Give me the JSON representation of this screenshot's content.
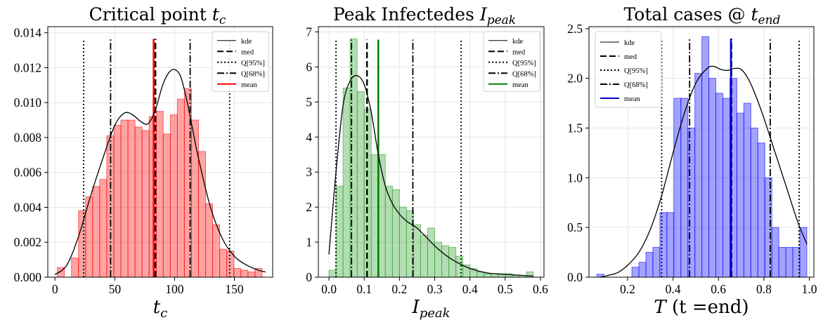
{
  "chart_data": [
    {
      "type": "bar",
      "title_text": "Critical point",
      "title_var": "t",
      "title_sub": "c",
      "xlabel_var": "t",
      "xlabel_sub": "c",
      "xlabel_tail": "",
      "bar_color": "#ff0000",
      "mean_color": "#ff0000",
      "xlim": [
        -6,
        182
      ],
      "ylim": [
        0,
        0.01435
      ],
      "xticks": [
        0,
        50,
        100,
        150
      ],
      "xtick_labels": [
        "0",
        "50",
        "100",
        "150"
      ],
      "yticks": [
        0,
        0.002,
        0.004,
        0.006,
        0.008,
        0.01,
        0.012,
        0.014
      ],
      "ytick_labels": [
        "0.000",
        "0.002",
        "0.004",
        "0.006",
        "0.008",
        "0.010",
        "0.012",
        "0.014"
      ],
      "bin_start": 2,
      "bin_width": 5.9,
      "values": [
        0.00055,
        0,
        0.0011,
        0.0038,
        0.0046,
        0.0052,
        0.0056,
        0.0081,
        0.0087,
        0.009,
        0.009,
        0.0086,
        0.0084,
        0.0092,
        0.0095,
        0.0082,
        0.0093,
        0.0102,
        0.0108,
        0.009,
        0.0072,
        0.0042,
        0.003,
        0.0016,
        0.0015,
        0.0005,
        0.0004,
        0.0003,
        0.0005
      ],
      "kde_x": [
        0,
        10,
        20,
        30,
        40,
        50,
        58,
        65,
        72,
        78,
        84,
        90,
        95,
        100,
        105,
        110,
        115,
        120,
        130,
        140,
        150,
        160,
        170,
        176
      ],
      "kde_y": [
        0.00015,
        0.0007,
        0.0024,
        0.0047,
        0.0068,
        0.0087,
        0.0094,
        0.0093,
        0.0089,
        0.0088,
        0.0096,
        0.011,
        0.0117,
        0.0119,
        0.0115,
        0.0102,
        0.0085,
        0.0068,
        0.004,
        0.0022,
        0.0012,
        0.0007,
        0.0004,
        0.0003
      ],
      "median": 84,
      "mean": 82.5,
      "q95": [
        24,
        146
      ],
      "q68": [
        46.5,
        113
      ],
      "vline_top": 0.01365,
      "legend_position": "top-right",
      "legend": [
        {
          "label": "kde",
          "style": "solid"
        },
        {
          "label": "med",
          "style": "dashed"
        },
        {
          "label": "Q[95%]",
          "style": "dotted"
        },
        {
          "label": "Q[68%]",
          "style": "dashdot"
        },
        {
          "label": "mean",
          "style": "mean"
        }
      ]
    },
    {
      "type": "bar",
      "title_text": "Peak Infectedes",
      "title_var": "I",
      "title_sub": "peak",
      "xlabel_var": "I",
      "xlabel_sub": "peak",
      "xlabel_tail": "",
      "bar_color": "#2ca02c",
      "mean_color": "#008000",
      "xlim": [
        -0.03,
        0.61
      ],
      "ylim": [
        0,
        7.15
      ],
      "xticks": [
        0.0,
        0.1,
        0.2,
        0.3,
        0.4,
        0.5,
        0.6
      ],
      "xtick_labels": [
        "0.0",
        "0.1",
        "0.2",
        "0.3",
        "0.4",
        "0.5",
        "0.6"
      ],
      "yticks": [
        0,
        1,
        2,
        3,
        4,
        5,
        6,
        7
      ],
      "ytick_labels": [
        "0",
        "1",
        "2",
        "3",
        "4",
        "5",
        "6",
        "7"
      ],
      "bin_start": 0,
      "bin_width": 0.02,
      "values": [
        0.2,
        2.6,
        5.4,
        6.8,
        5.3,
        4.8,
        3.5,
        3.5,
        2.6,
        2.5,
        2.0,
        1.9,
        1.5,
        1.2,
        1.4,
        1.0,
        0.9,
        0.85,
        0.6,
        0.35,
        0.25,
        0.15,
        0.1,
        0.1,
        0.1,
        0.1,
        0.05,
        0.05,
        0.15
      ],
      "kde_x": [
        0.0,
        0.02,
        0.04,
        0.06,
        0.08,
        0.1,
        0.12,
        0.14,
        0.16,
        0.18,
        0.2,
        0.22,
        0.25,
        0.28,
        0.31,
        0.35,
        0.4,
        0.45,
        0.5,
        0.55,
        0.58
      ],
      "kde_y": [
        0.65,
        3.0,
        4.9,
        5.6,
        5.75,
        5.5,
        4.7,
        3.5,
        2.6,
        2.1,
        1.8,
        1.6,
        1.4,
        1.1,
        0.8,
        0.5,
        0.25,
        0.12,
        0.08,
        0.05,
        0.03
      ],
      "median": 0.108,
      "mean": 0.14,
      "q95": [
        0.02,
        0.375
      ],
      "q68": [
        0.064,
        0.238
      ],
      "vline_top": 6.78,
      "legend_position": "top-right",
      "legend": [
        {
          "label": "kde",
          "style": "solid"
        },
        {
          "label": "med",
          "style": "dashed"
        },
        {
          "label": "Q[95%]",
          "style": "dotted"
        },
        {
          "label": "Q[68%]",
          "style": "dashdot"
        },
        {
          "label": "mean",
          "style": "mean"
        }
      ]
    },
    {
      "type": "bar",
      "title_text": "Total cases @",
      "title_var": "t",
      "title_sub": "end",
      "xlabel_var": "T",
      "xlabel_sub": "",
      "xlabel_tail": "(t =end)",
      "bar_color": "#0000ff",
      "mean_color": "#0000cc",
      "xlim": [
        0.03,
        1.02
      ],
      "ylim": [
        0,
        2.52
      ],
      "xticks": [
        0.2,
        0.4,
        0.6,
        0.8,
        1.0
      ],
      "xtick_labels": [
        "0.2",
        "0.4",
        "0.6",
        "0.8",
        "1.0"
      ],
      "yticks": [
        0,
        0.5,
        1.0,
        1.5,
        2.0,
        2.5
      ],
      "ytick_labels": [
        "0.0",
        "0.5",
        "1.0",
        "1.5",
        "2.0",
        "2.5"
      ],
      "bin_start": 0.065,
      "bin_width": 0.0308,
      "values": [
        0.03,
        0,
        0,
        0,
        0,
        0.1,
        0.15,
        0.25,
        0.3,
        0.65,
        0.65,
        1.8,
        1.8,
        1.5,
        2.05,
        2.42,
        2.0,
        1.85,
        1.8,
        2.0,
        1.65,
        1.75,
        1.5,
        1.35,
        1.0,
        0.5,
        0.3,
        0.3,
        0.3,
        0.5
      ],
      "kde_x": [
        0.08,
        0.12,
        0.16,
        0.2,
        0.25,
        0.3,
        0.35,
        0.4,
        0.45,
        0.5,
        0.55,
        0.58,
        0.61,
        0.64,
        0.67,
        0.7,
        0.73,
        0.76,
        0.8,
        0.85,
        0.9,
        0.95,
        0.99
      ],
      "kde_y": [
        0.0,
        0.02,
        0.05,
        0.12,
        0.25,
        0.48,
        0.82,
        1.25,
        1.65,
        1.95,
        2.1,
        2.12,
        2.09,
        2.08,
        2.1,
        2.09,
        2.0,
        1.85,
        1.6,
        1.25,
        0.9,
        0.55,
        0.33
      ],
      "median": 0.657,
      "mean": 0.655,
      "q95": [
        0.35,
        0.955
      ],
      "q68": [
        0.473,
        0.828
      ],
      "vline_top": 2.4,
      "legend_position": "top-left",
      "legend": [
        {
          "label": "kde",
          "style": "solid"
        },
        {
          "label": "med",
          "style": "dashed"
        },
        {
          "label": "Q[95%]",
          "style": "dotted"
        },
        {
          "label": "Q[68%]",
          "style": "dashdot"
        },
        {
          "label": "mean",
          "style": "mean"
        }
      ]
    }
  ]
}
